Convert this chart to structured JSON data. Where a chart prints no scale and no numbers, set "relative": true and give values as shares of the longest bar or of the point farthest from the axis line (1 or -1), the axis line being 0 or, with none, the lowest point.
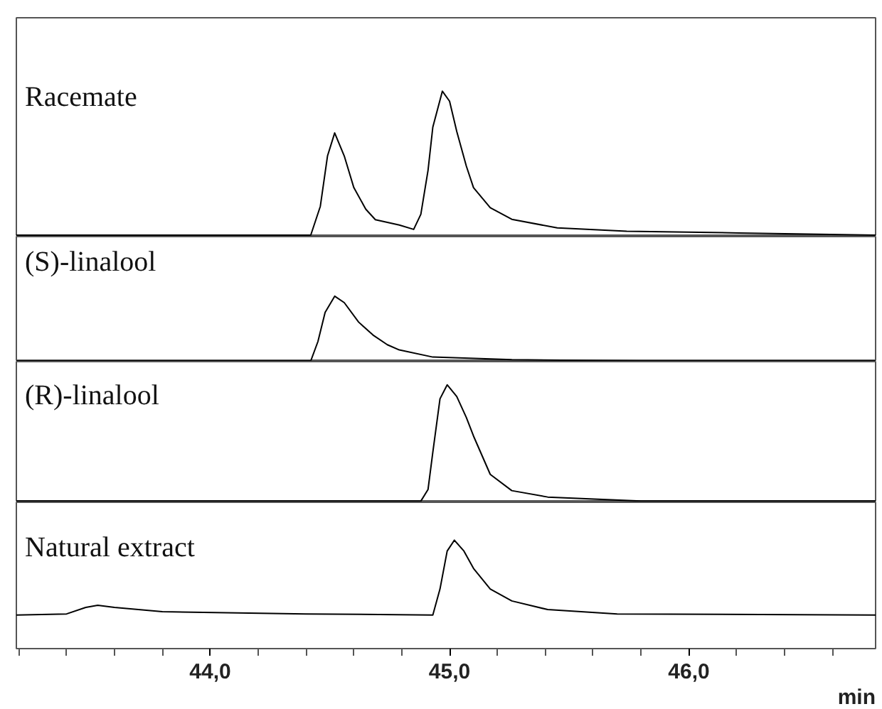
{
  "chart_data": [
    {
      "type": "line",
      "relative": true,
      "tick_labels": false,
      "xlim": [
        43.19,
        46.78
      ],
      "series": [
        {
          "name": "Racemate",
          "color": "#000000",
          "x": [
            43.19,
            44.0,
            44.42,
            44.46,
            44.49,
            44.52,
            44.56,
            44.6,
            44.65,
            44.69,
            44.79,
            44.85,
            44.88,
            44.91,
            44.93,
            44.97,
            45.0,
            45.03,
            45.07,
            45.1,
            45.17,
            45.26,
            45.45,
            45.74,
            46.21,
            46.78
          ],
          "values": [
            0,
            0,
            0,
            0.2,
            0.55,
            0.71,
            0.55,
            0.33,
            0.18,
            0.107,
            0.07,
            0.04,
            0.145,
            0.45,
            0.75,
            1.0,
            0.93,
            0.72,
            0.48,
            0.33,
            0.19,
            0.11,
            0.05,
            0.027,
            0.015,
            0
          ]
        }
      ]
    },
    {
      "type": "line",
      "relative": true,
      "tick_labels": false,
      "xlim": [
        43.19,
        46.78
      ],
      "series": [
        {
          "name": "(S)-linalool",
          "color": "#000000",
          "x": [
            43.19,
            44.42,
            44.45,
            44.48,
            44.52,
            44.56,
            44.62,
            44.68,
            44.74,
            44.79,
            44.93,
            45.26,
            45.8,
            46.78
          ],
          "values": [
            0,
            0,
            0.3,
            0.75,
            1.0,
            0.9,
            0.6,
            0.4,
            0.25,
            0.17,
            0.06,
            0.02,
            0,
            0
          ]
        }
      ]
    },
    {
      "type": "line",
      "relative": true,
      "tick_labels": false,
      "xlim": [
        43.19,
        46.78
      ],
      "series": [
        {
          "name": "(R)-linalool",
          "color": "#000000",
          "x": [
            43.19,
            44.88,
            44.91,
            44.93,
            44.96,
            44.99,
            45.03,
            45.07,
            45.1,
            45.17,
            45.26,
            45.41,
            45.8,
            46.78
          ],
          "values": [
            0,
            0,
            0.1,
            0.42,
            0.88,
            1.0,
            0.9,
            0.72,
            0.56,
            0.23,
            0.09,
            0.035,
            0,
            0
          ]
        }
      ]
    },
    {
      "type": "line",
      "relative": true,
      "tick_labels": "x",
      "xlim": [
        43.19,
        46.78
      ],
      "xlabel": "min",
      "xticks": [
        {
          "value": 43.2,
          "label": null
        },
        {
          "value": 43.4,
          "label": null
        },
        {
          "value": 43.6,
          "label": null
        },
        {
          "value": 43.8,
          "label": null
        },
        {
          "value": 44.0,
          "label": "44,0"
        },
        {
          "value": 44.2,
          "label": null
        },
        {
          "value": 44.4,
          "label": null
        },
        {
          "value": 44.6,
          "label": null
        },
        {
          "value": 44.8,
          "label": null
        },
        {
          "value": 45.0,
          "label": "45,0"
        },
        {
          "value": 45.2,
          "label": null
        },
        {
          "value": 45.4,
          "label": null
        },
        {
          "value": 45.6,
          "label": null
        },
        {
          "value": 45.8,
          "label": null
        },
        {
          "value": 46.0,
          "label": "46,0"
        },
        {
          "value": 46.2,
          "label": null
        },
        {
          "value": 46.4,
          "label": null
        },
        {
          "value": 46.6,
          "label": null
        }
      ],
      "series": [
        {
          "name": "Natural extract",
          "color": "#000000",
          "x": [
            43.19,
            43.4,
            43.48,
            43.53,
            43.6,
            43.8,
            44.4,
            44.93,
            44.96,
            44.99,
            45.02,
            45.06,
            45.1,
            45.17,
            45.26,
            45.41,
            45.7,
            46.78
          ],
          "values": [
            0.31,
            0.32,
            0.38,
            0.4,
            0.38,
            0.34,
            0.32,
            0.31,
            0.55,
            0.9,
            1.0,
            0.9,
            0.74,
            0.55,
            0.44,
            0.36,
            0.32,
            0.31
          ]
        }
      ]
    }
  ]
}
